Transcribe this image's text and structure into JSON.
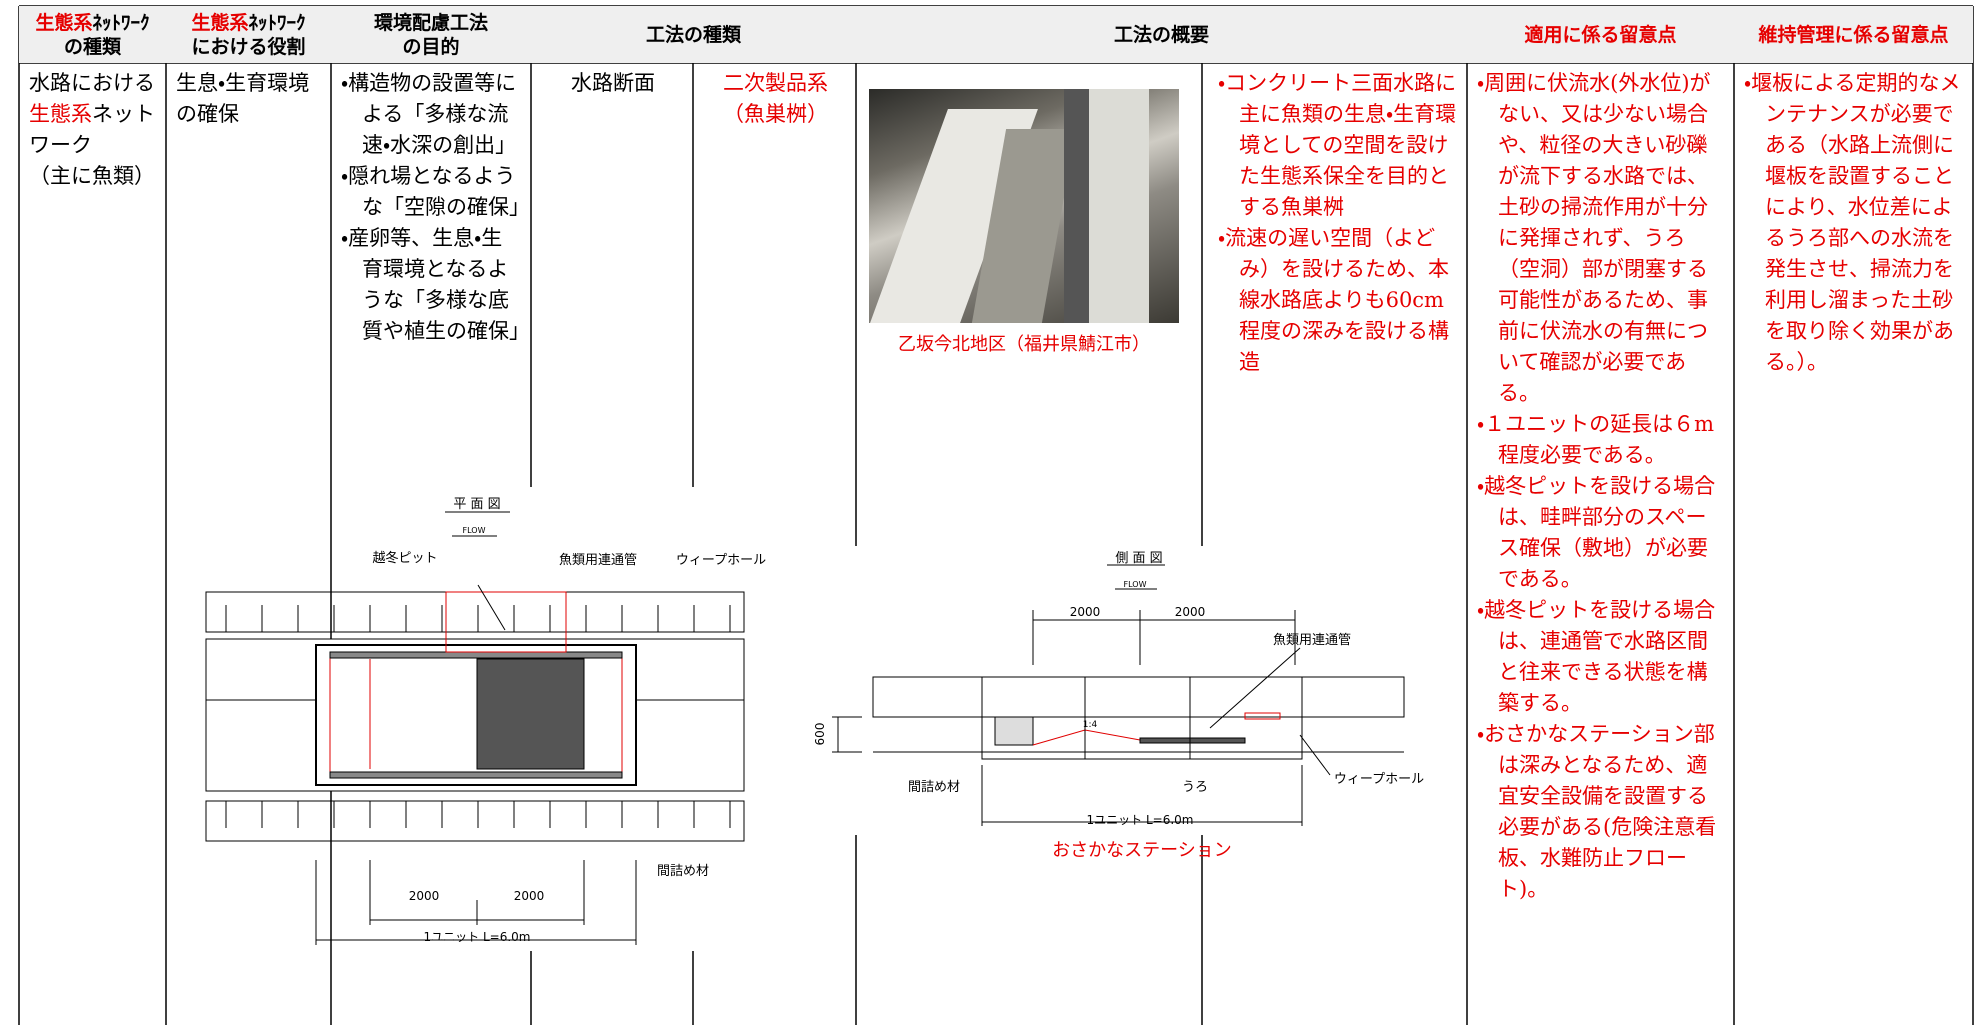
{
  "header": {
    "cells": [
      {
        "lines": [
          [
            {
              "text": "生態系",
              "color": "#e60000"
            },
            {
              "text": "ﾈｯﾄﾜｰｸ"
            }
          ],
          [
            {
              "text": "の種類"
            }
          ]
        ]
      },
      {
        "lines": [
          [
            {
              "text": "生態系",
              "color": "#e60000"
            },
            {
              "text": "ﾈｯﾄﾜｰｸ"
            }
          ],
          [
            {
              "text": "における役割"
            }
          ]
        ]
      },
      {
        "lines": [
          [
            {
              "text": "環境配慮工法"
            }
          ],
          [
            {
              "text": "の目的"
            }
          ]
        ]
      },
      {
        "lines": [
          [
            {
              "text": "工法の種類"
            }
          ]
        ]
      },
      {
        "lines": [
          [
            {
              "text": "工法の概要"
            }
          ]
        ]
      },
      {
        "lines": [
          [
            {
              "text": "適用に係る留意点",
              "color": "#e60000"
            }
          ]
        ]
      },
      {
        "lines": [
          [
            {
              "text": "維持管理に係る留意点",
              "color": "#e60000"
            }
          ]
        ]
      }
    ]
  },
  "body": {
    "cells": [
      {
        "paragraphs": [
          [
            {
              "text": "水路における"
            },
            {
              "text": "生態系",
              "color": "#e60000"
            },
            {
              "text": "ネットワーク"
            }
          ],
          [
            {
              "text": "（主に魚類）"
            }
          ]
        ]
      },
      {
        "paragraphs": [
          [
            {
              "text": "生息・生育環境の確保"
            }
          ]
        ]
      },
      {
        "paragraphs": [
          [
            {
              "text": "・構造物の設置等による「多様な流速・水深の創出」"
            }
          ],
          [
            {
              "text": "・隠れ場となるような「空隙の確保」"
            }
          ],
          [
            {
              "text": "・産卵等、生息・生育環境となるような「多様な底質や植生の確保」"
            }
          ]
        ]
      },
      {
        "paragraphs": [
          [
            {
              "text": "水路断面"
            }
          ]
        ]
      },
      {
        "paragraphs": [
          [
            {
              "text": "二次製品系",
              "color": "#e60000"
            }
          ],
          [
            {
              "text": "（魚巣桝）",
              "color": "#e60000"
            }
          ]
        ]
      },
      {
        "paragraphs": [
          [
            {
              "text": "・コンクリート三面水路に主に魚類の生息・生育環境としての空間を設けた生態系保全を目的とする魚巣桝",
              "color": "#e60000"
            }
          ],
          [
            {
              "text": "・流速の遅い空間（よどみ）を設けるため、本線水路底よりも60cm程度の深みを設ける構造",
              "color": "#e60000"
            }
          ]
        ]
      },
      {
        "paragraphs": [
          [
            {
              "text": "・周囲に伏流水(外水位)がない、又は少ない場合や、粒径の大きい砂礫が流下する水路では、土砂の掃流作用が十分に発揮されず、うろ（空洞）部が閉塞する可能性があるため、事前に伏流水の有無について確認が必要である。",
              "color": "#e60000"
            }
          ],
          [
            {
              "text": "・１ユニットの延長は６m程度必要である。",
              "color": "#e60000"
            }
          ],
          [
            {
              "text": "・越冬ピットを設ける場合は、畦畔部分のスペース確保（敷地）が必要である。",
              "color": "#e60000"
            }
          ],
          [
            {
              "text": "・越冬ピットを設ける場合は、連通管で水路区間と往来できる状態を構築する。",
              "color": "#e60000"
            }
          ],
          [
            {
              "text": "・おさかなステーション部は深みとなるため、適宜安全設備を設置する必要がある(危険注意看板、水難防止フロート)。",
              "color": "#e60000"
            }
          ]
        ]
      },
      {
        "paragraphs": [
          [
            {
              "text": "・堰板による定期的なメンテナンスが必要である（水路上流側に堰板を設置することにより、水位差によるうろ部への水流を発生させ、掃流力を利用し溜まった土砂を取り除く効果がある。）。",
              "color": "#e60000"
            }
          ]
        ]
      }
    ]
  },
  "photo": {
    "caption": "乙坂今北地区（福井県鯖江市）"
  },
  "plan_drawing": {
    "labels": [
      "平 面 図",
      "FLOW",
      "越冬ピット",
      "魚類用連通管",
      "ウィープホール",
      "間詰め材",
      "2000",
      "2000",
      "1ユニット L=6.0m"
    ]
  },
  "side_drawing": {
    "labels": [
      "側 面 図",
      "FLOW",
      "2000",
      "2000",
      "魚類用連通管",
      "600",
      "1:4",
      "間詰め材",
      "うろ",
      "ウィープホール",
      "1ユニット L=6.0m"
    ],
    "caption": "おさかなステーション"
  }
}
